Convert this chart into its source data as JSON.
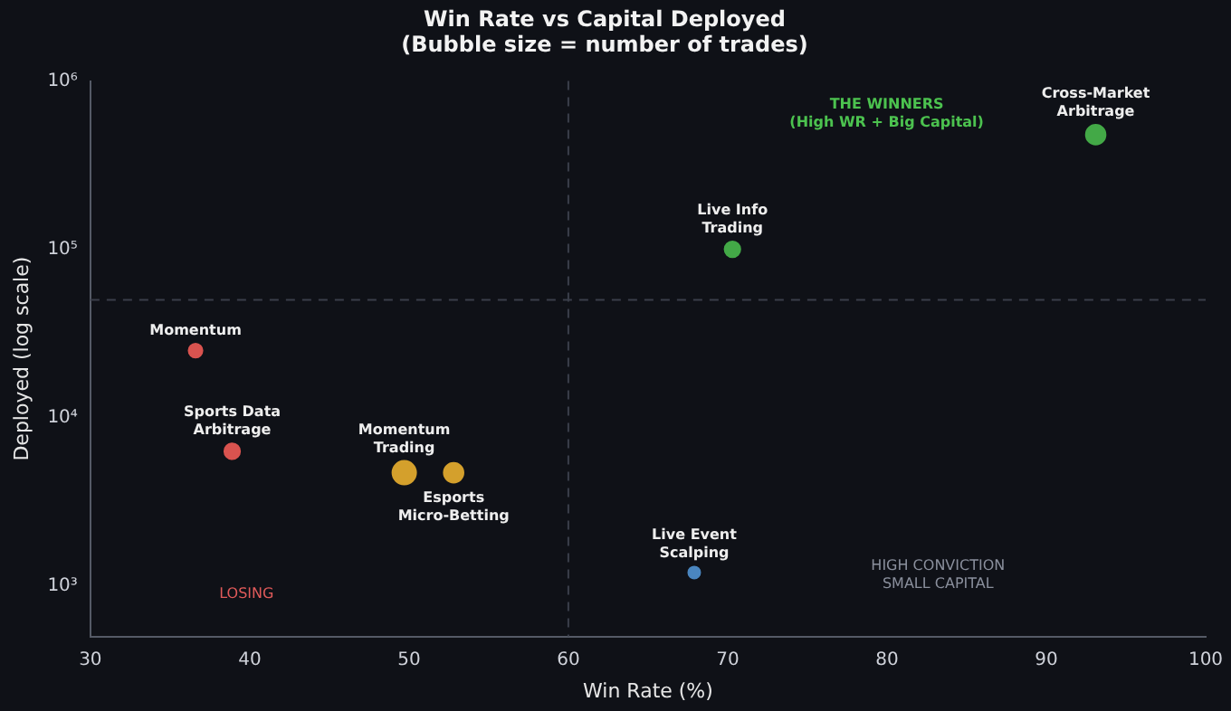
{
  "chart_data": {
    "type": "bubble",
    "title": "Win Rate vs Capital Deployed",
    "subtitle": "(Bubble size = number of trades)",
    "xlabel": "Win Rate (%)",
    "ylabel": "Deployed (log scale)",
    "log": "y",
    "xlim": [
      30,
      100
    ],
    "xticks": [
      30,
      40,
      50,
      60,
      70,
      80,
      90,
      100
    ],
    "ylim": [
      500,
      1000000
    ],
    "yticks": [
      {
        "value": 1000,
        "label": "10³"
      },
      {
        "value": 10000,
        "label": "10⁴"
      },
      {
        "value": 100000,
        "label": "10⁵"
      },
      {
        "value": 1000000,
        "label": "10⁶"
      }
    ],
    "series": [
      {
        "name": "Momentum",
        "color": "#d9534f",
        "x": [
          36.6
        ],
        "values": [
          25000
        ],
        "sizes": [
          0.34
        ]
      },
      {
        "name": "Sports Data Arbitrage",
        "color": "#d9534f",
        "x": [
          38.9
        ],
        "values": [
          6300
        ],
        "sizes": [
          0.44
        ]
      },
      {
        "name": "Momentum Trading",
        "color": "#d4a02c",
        "x": [
          49.7
        ],
        "values": [
          4700
        ],
        "sizes": [
          1
        ]
      },
      {
        "name": "Esports Micro-Betting",
        "color": "#d4a02c",
        "x": [
          52.8
        ],
        "values": [
          4700
        ],
        "sizes": [
          0.69
        ]
      },
      {
        "name": "Live Event Scalping",
        "color": "#4a86c0",
        "x": [
          67.9
        ],
        "values": [
          1200
        ],
        "sizes": [
          0.25
        ]
      },
      {
        "name": "Live Info Trading",
        "color": "#43a947",
        "x": [
          70.3
        ],
        "values": [
          100000
        ],
        "sizes": [
          0.44
        ]
      },
      {
        "name": "Cross-Market Arbitrage",
        "color": "#43a947",
        "x": [
          93.1
        ],
        "values": [
          480000
        ],
        "sizes": [
          0.69
        ]
      }
    ],
    "ref_lines": [
      {
        "axis": "x",
        "value": 60,
        "color": "#3a3e4a",
        "line_style": "dashed"
      },
      {
        "axis": "y",
        "value": 50000,
        "color": "#3a3e4a",
        "line_style": "dashed"
      }
    ],
    "annotations": [
      "THE WINNERS\n(High WR + Big Capital)",
      "LOSING",
      "HIGH CONVICTION\nSMALL CAPITAL"
    ]
  }
}
